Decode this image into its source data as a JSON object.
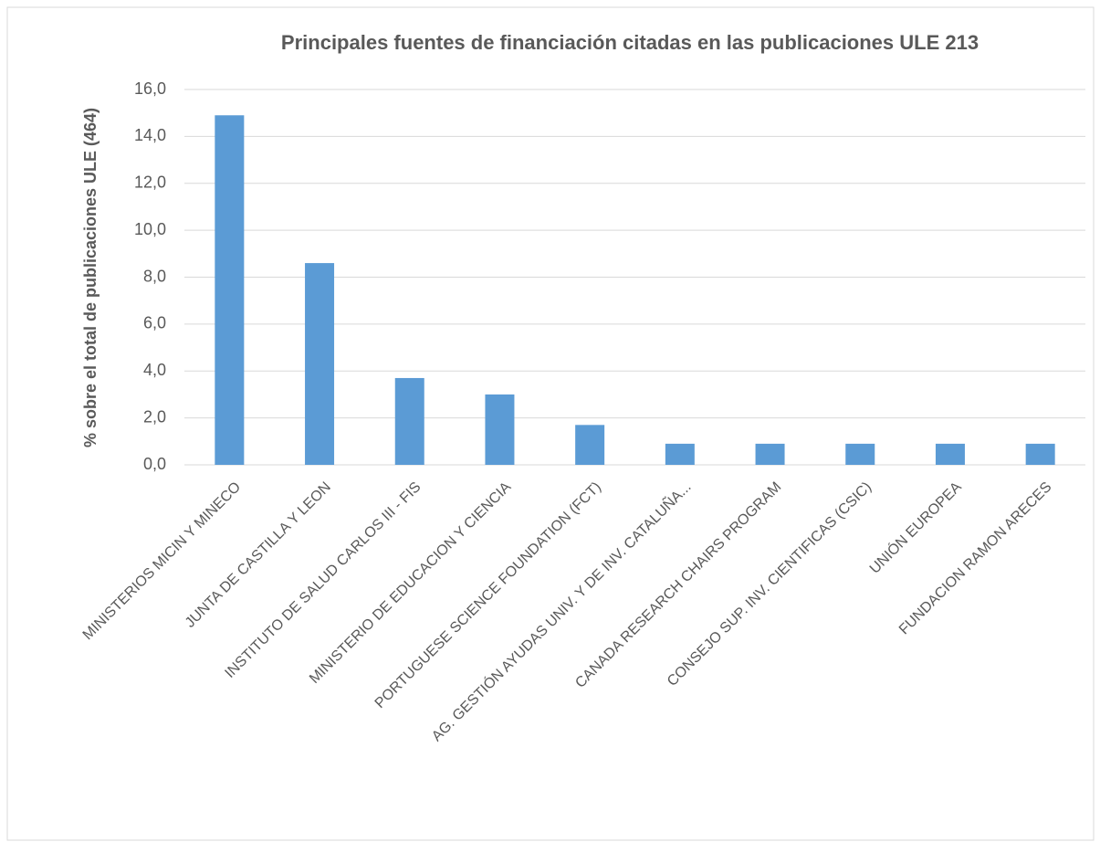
{
  "chart_data": {
    "type": "bar",
    "title": "Principales fuentes de financiación citadas en las publicaciones ULE 213",
    "y_label": "% sobre el total de publicaciones ULE (464)",
    "categories": [
      "MINISTERIOS MICIN Y MINECO",
      "JUNTA DE CASTILLA Y LEON",
      "INSTITUTO DE SALUD CARLOS III - FIS",
      "MINISTERIO DE EDUCACION Y CIENCIA",
      "PORTUGUESE SCIENCE FOUNDATION (FCT)",
      "AG. GESTIÓN AYUDAS UNIV. Y DE INV. CATALUÑA...",
      "CANADA RESEARCH CHAIRS PROGRAM",
      "CONSEJO SUP. INV. CIENTIFICAS (CSIC)",
      "UNIÓN EUROPEA",
      "FUNDACION RAMON ARECES"
    ],
    "values": [
      14.9,
      8.6,
      3.7,
      3.0,
      1.7,
      0.9,
      0.9,
      0.9,
      0.9,
      0.9
    ],
    "color": "#5b9bd5",
    "ylim": [
      0,
      16
    ],
    "yticks": [
      {
        "value": 0,
        "label": "0,0"
      },
      {
        "value": 2,
        "label": "2,0"
      },
      {
        "value": 4,
        "label": "4,0"
      },
      {
        "value": 6,
        "label": "6,0"
      },
      {
        "value": 8,
        "label": "8,0"
      },
      {
        "value": 10,
        "label": "10,0"
      },
      {
        "value": 12,
        "label": "12,0"
      },
      {
        "value": 14,
        "label": "14,0"
      },
      {
        "value": 16,
        "label": "16,0"
      }
    ],
    "grid": true
  }
}
